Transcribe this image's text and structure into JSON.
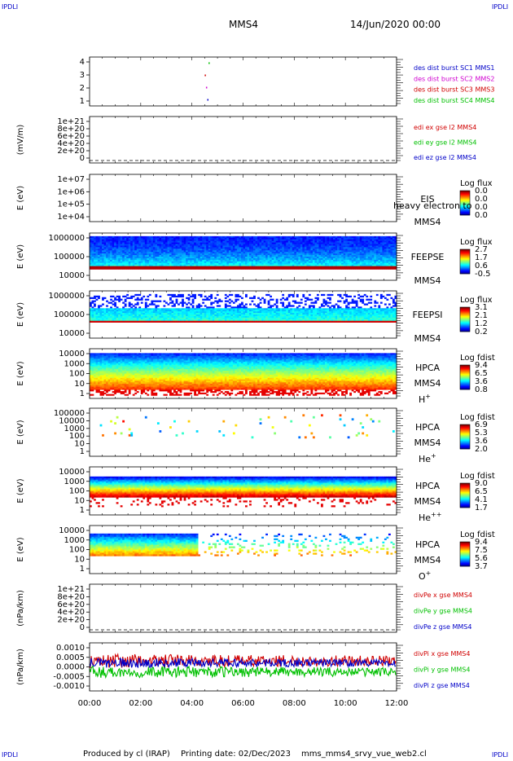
{
  "corner_label": "IPDLI",
  "header": {
    "spacecraft": "MMS4",
    "date": "14/Jun/2020 00:00"
  },
  "footer": {
    "produced_by": "Produced by cl (IRAP)",
    "printing_date": "Printing date: 02/Dec/2023",
    "filename": "mms_mms4_srvy_vue_web2.cl"
  },
  "x_axis": {
    "ticks": [
      "00:00",
      "02:00",
      "04:00",
      "06:00",
      "08:00",
      "10:00",
      "12:00"
    ]
  },
  "colors": {
    "blue": "#0000c8",
    "magenta": "#d000d0",
    "red": "#d00000",
    "green": "#00c000"
  },
  "chart_data": [
    {
      "type": "scatter",
      "title": "",
      "ylabel": "",
      "yticks": [
        "4",
        "3",
        "2",
        "1"
      ],
      "ylim": [
        0.5,
        4.5
      ],
      "series": [
        {
          "name": "des dist burst SC1 MMS1",
          "color": "#0000c8",
          "x": [
            4.6
          ],
          "y": [
            1
          ]
        },
        {
          "name": "des dist burst SC2 MMS2",
          "color": "#d000d0",
          "x": [
            4.55
          ],
          "y": [
            2
          ]
        },
        {
          "name": "des dist burst SC3 MMS3",
          "color": "#d00000",
          "x": [
            4.5
          ],
          "y": [
            3
          ]
        },
        {
          "name": "des dist burst SC4 MMS4",
          "color": "#00c000",
          "x": [
            4.65
          ],
          "y": [
            4
          ]
        }
      ]
    },
    {
      "type": "line",
      "title": "",
      "ylabel": "(mV/m)",
      "yticks": [
        "1e+21",
        "8e+20",
        "6e+20",
        "4e+20",
        "2e+20",
        "0"
      ],
      "ylim": [
        0,
        1e+21
      ],
      "series": [
        {
          "name": "edi ex gse l2 MMS4",
          "color": "#d00000"
        },
        {
          "name": "edi ey gse l2 MMS4",
          "color": "#00c000"
        },
        {
          "name": "edi ez gse l2 MMS4",
          "color": "#0000c8"
        }
      ]
    },
    {
      "type": "heatmap",
      "title": "",
      "ylabel": "E (eV)",
      "yticks": [
        "1e+07",
        "1e+06",
        "1e+05",
        "1e+04"
      ],
      "ylim": [
        10000,
        10000000
      ],
      "instrument": "EIS",
      "label_2": "heavy electron to",
      "label_3": "MMS4",
      "colorbar": {
        "label": "Log flux",
        "ticks": [
          "0.0",
          "0.0",
          "0.0",
          "0.0"
        ]
      }
    },
    {
      "type": "heatmap",
      "title": "",
      "ylabel": "E (eV)",
      "yticks": [
        "1000000",
        "100000",
        "10000"
      ],
      "ylim": [
        10000,
        1000000
      ],
      "instrument": "FEEPSE",
      "label_2": "MMS4",
      "colorbar": {
        "label": "Log flux",
        "ticks": [
          "2.7",
          "1.7",
          "0.6",
          "-0.5"
        ]
      }
    },
    {
      "type": "heatmap",
      "title": "",
      "ylabel": "E (eV)",
      "yticks": [
        "1000000",
        "100000",
        "10000"
      ],
      "ylim": [
        10000,
        1000000
      ],
      "instrument": "FEEPSI",
      "label_2": "MMS4",
      "colorbar": {
        "label": "Log flux",
        "ticks": [
          "3.1",
          "2.1",
          "1.2",
          "0.2"
        ]
      }
    },
    {
      "type": "heatmap",
      "title": "",
      "ylabel": "E (eV)",
      "yticks": [
        "10000",
        "1000",
        "100",
        "10",
        "1"
      ],
      "ylim": [
        1,
        10000
      ],
      "instrument": "HPCA",
      "label_2": "MMS4",
      "species": "H",
      "species_sup": "+",
      "colorbar": {
        "label": "Log fdist",
        "ticks": [
          "9.4",
          "6.5",
          "3.6",
          "0.8"
        ]
      }
    },
    {
      "type": "heatmap",
      "title": "",
      "ylabel": "E (eV)",
      "yticks": [
        "100000",
        "10000",
        "1000",
        "100",
        "10",
        "1"
      ],
      "ylim": [
        1,
        100000
      ],
      "instrument": "HPCA",
      "label_2": "MMS4",
      "species": "He",
      "species_sup": "+",
      "colorbar": {
        "label": "Log fdist",
        "ticks": [
          "6.9",
          "5.3",
          "3.6",
          "2.0"
        ]
      }
    },
    {
      "type": "heatmap",
      "title": "",
      "ylabel": "E (eV)",
      "yticks": [
        "10000",
        "1000",
        "100",
        "10",
        "1"
      ],
      "ylim": [
        1,
        10000
      ],
      "instrument": "HPCA",
      "label_2": "MMS4",
      "species": "He",
      "species_sup": "++",
      "colorbar": {
        "label": "Log fdist",
        "ticks": [
          "9.0",
          "6.5",
          "4.1",
          "1.7"
        ]
      }
    },
    {
      "type": "heatmap",
      "title": "",
      "ylabel": "E (eV)",
      "yticks": [
        "10000",
        "1000",
        "100",
        "10",
        "1"
      ],
      "ylim": [
        1,
        10000
      ],
      "instrument": "HPCA",
      "label_2": "MMS4",
      "species": "O",
      "species_sup": "+",
      "colorbar": {
        "label": "Log fdist",
        "ticks": [
          "9.4",
          "7.5",
          "5.6",
          "3.7"
        ]
      }
    },
    {
      "type": "line",
      "title": "",
      "ylabel": "(nPa/km)",
      "yticks": [
        "1e+21",
        "8e+20",
        "6e+20",
        "4e+20",
        "2e+20",
        "0"
      ],
      "ylim": [
        0,
        1e+21
      ],
      "series": [
        {
          "name": "divPe x gse MMS4",
          "color": "#d00000"
        },
        {
          "name": "divPe y gse MMS4",
          "color": "#00c000"
        },
        {
          "name": "divPe z gse MMS4",
          "color": "#0000c8"
        }
      ]
    },
    {
      "type": "line",
      "title": "",
      "ylabel": "(nPa/km)",
      "yticks": [
        "0.0010",
        "0.0005",
        "0.0000",
        "-0.0005",
        "-0.0010"
      ],
      "ylim": [
        -0.0012,
        0.0012
      ],
      "series": [
        {
          "name": "divPi x gse MMS4",
          "color": "#d00000"
        },
        {
          "name": "divPi y gse MMS4",
          "color": "#00c000"
        },
        {
          "name": "divPi z gse MMS4",
          "color": "#0000c8"
        }
      ]
    }
  ]
}
